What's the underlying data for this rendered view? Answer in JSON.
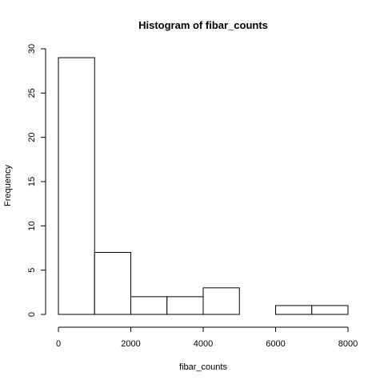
{
  "chart_data": {
    "type": "bar",
    "title": "Histogram of fibar_counts",
    "xlabel": "fibar_counts",
    "ylabel": "Frequency",
    "bins": [
      {
        "from": 0,
        "to": 1000,
        "count": 29
      },
      {
        "from": 1000,
        "to": 2000,
        "count": 7
      },
      {
        "from": 2000,
        "to": 3000,
        "count": 2
      },
      {
        "from": 3000,
        "to": 4000,
        "count": 2
      },
      {
        "from": 4000,
        "to": 5000,
        "count": 3
      },
      {
        "from": 5000,
        "to": 6000,
        "count": 0
      },
      {
        "from": 6000,
        "to": 7000,
        "count": 1
      },
      {
        "from": 7000,
        "to": 8000,
        "count": 1
      }
    ],
    "xlim": [
      0,
      8000
    ],
    "ylim": [
      0,
      30
    ],
    "x_ticks": [
      0,
      2000,
      4000,
      6000,
      8000
    ],
    "y_ticks": [
      0,
      5,
      10,
      15,
      20,
      25,
      30
    ],
    "grid": false,
    "legend": "none"
  }
}
